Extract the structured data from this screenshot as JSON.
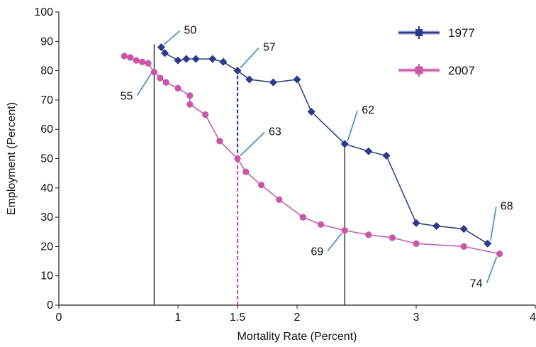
{
  "chart_data": {
    "type": "line",
    "xlabel": "Mortality Rate (Percent)",
    "ylabel": "Employment (Percent)",
    "xlim": [
      0,
      4
    ],
    "ylim": [
      0,
      100
    ],
    "x_ticks": [
      0,
      1,
      1.5,
      2,
      3,
      4
    ],
    "x_tick_labels": [
      "0",
      "1",
      "1.5",
      "2",
      "3",
      "4"
    ],
    "y_ticks": [
      0,
      10,
      20,
      30,
      40,
      50,
      60,
      70,
      80,
      90,
      100
    ],
    "y_tick_labels": [
      "0",
      "10",
      "20",
      "30",
      "40",
      "50",
      "60",
      "70",
      "80",
      "90",
      "100"
    ],
    "grid": false,
    "legend_position": "top-right",
    "series": [
      {
        "name": "1977",
        "color": "#2b3990",
        "marker": "diamond",
        "x": [
          0.86,
          0.89,
          1.0,
          1.07,
          1.15,
          1.29,
          1.38,
          1.5,
          1.6,
          1.8,
          2.0,
          2.12,
          2.4,
          2.6,
          2.75,
          3.0,
          3.17,
          3.4,
          3.6
        ],
        "y": [
          88,
          86,
          83.5,
          84,
          84,
          84,
          83,
          80,
          77,
          76,
          77,
          66,
          55,
          52.5,
          51,
          28,
          27,
          26,
          21
        ]
      },
      {
        "name": "2007",
        "color": "#cc55aa",
        "marker": "circle",
        "x": [
          0.55,
          0.6,
          0.65,
          0.7,
          0.75,
          0.8,
          0.85,
          0.9,
          1.0,
          1.1,
          1.1,
          1.23,
          1.35,
          1.5,
          1.57,
          1.7,
          1.85,
          2.05,
          2.2,
          2.4,
          2.6,
          2.8,
          3.0,
          3.4,
          3.7
        ],
        "y": [
          85,
          84.5,
          83.5,
          83,
          82.5,
          79.5,
          77.5,
          76,
          74,
          71.5,
          68.5,
          65,
          56,
          50,
          45.5,
          41,
          36,
          30,
          27.5,
          25.5,
          24,
          23,
          21,
          20,
          17.5
        ]
      }
    ],
    "vertical_lines": [
      {
        "x": 0.8,
        "from": 0,
        "to": 89,
        "color": "#222222",
        "style": "solid"
      },
      {
        "x": 1.5,
        "from": 50,
        "to": 80,
        "color": "#2b3990",
        "style": "dashed"
      },
      {
        "x": 1.5,
        "from": 0,
        "to": 50,
        "color": "#cc55aa",
        "style": "dashed"
      },
      {
        "x": 2.4,
        "from": 0,
        "to": 55,
        "color": "#222222",
        "style": "solid"
      }
    ],
    "annotations": [
      {
        "text": "50",
        "x": 0.86,
        "y": 88,
        "dx": 32,
        "dy": -24,
        "anchor": "start"
      },
      {
        "text": "57",
        "x": 1.5,
        "y": 80,
        "dx": 36,
        "dy": -33,
        "anchor": "start"
      },
      {
        "text": "55",
        "x": 0.8,
        "y": 80,
        "dx": -30,
        "dy": 36,
        "anchor": "end"
      },
      {
        "text": "63",
        "x": 1.5,
        "y": 50,
        "dx": 44,
        "dy": -38,
        "anchor": "start"
      },
      {
        "text": "62",
        "x": 2.4,
        "y": 55,
        "dx": 24,
        "dy": -48,
        "anchor": "start"
      },
      {
        "text": "69",
        "x": 2.4,
        "y": 25.5,
        "dx": -30,
        "dy": 30,
        "anchor": "end"
      },
      {
        "text": "68",
        "x": 3.6,
        "y": 21,
        "dx": 18,
        "dy": -53,
        "anchor": "start"
      },
      {
        "text": "74",
        "x": 3.7,
        "y": 17.5,
        "dx": -24,
        "dy": 42,
        "anchor": "end"
      }
    ]
  }
}
